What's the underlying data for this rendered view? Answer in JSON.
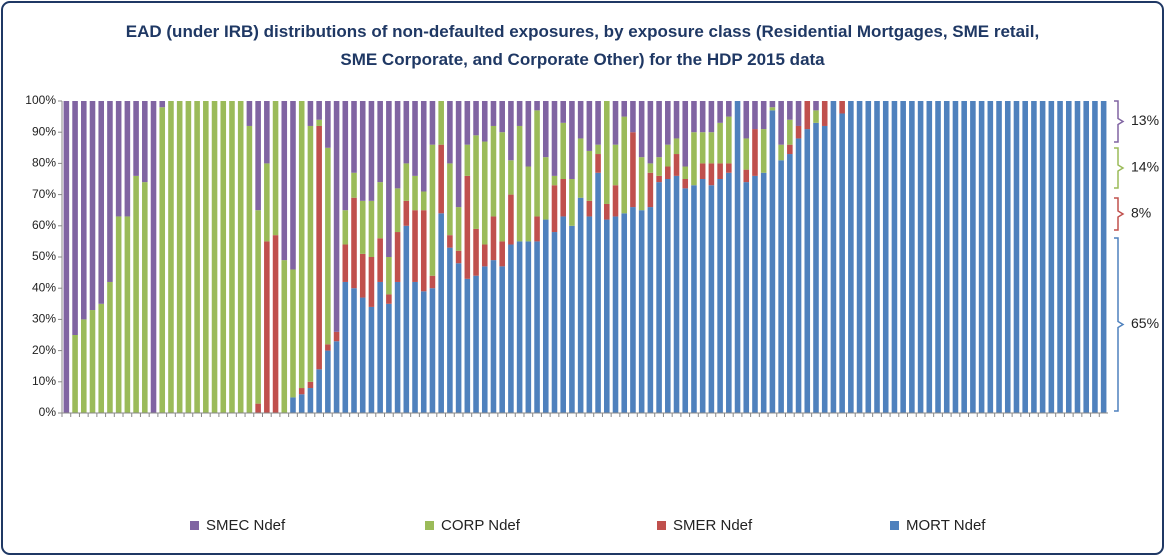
{
  "chart_data": {
    "type": "stacked_bar",
    "title": "EAD (under IRB) distributions of non-defaulted exposures, by exposure class (Residential Mortgages, SME retail, SME Corporate, and Corporate Other) for the HDP 2015 data",
    "categories": [
      null,
      null,
      null,
      null,
      null,
      null,
      null,
      null,
      null,
      null,
      null,
      null,
      null,
      null,
      null,
      null,
      null,
      null,
      null,
      null,
      null,
      null,
      null,
      null,
      null,
      null,
      null,
      null,
      null,
      null,
      null,
      null,
      null,
      null,
      null,
      null,
      null,
      null,
      null,
      null,
      null,
      null,
      null,
      null,
      null,
      null,
      null,
      null,
      null,
      null,
      null,
      null,
      null,
      null,
      null,
      null,
      null,
      null,
      null,
      null,
      null,
      null,
      null,
      null,
      null,
      null,
      null,
      null,
      null,
      null,
      null,
      null,
      null,
      null,
      null,
      null,
      null,
      null,
      null,
      null,
      null,
      null,
      null,
      null,
      null,
      null,
      null,
      null,
      null,
      null,
      null,
      null,
      null,
      null,
      null,
      null,
      null,
      null,
      null,
      null,
      null,
      null,
      null,
      null,
      null,
      null,
      null,
      null,
      null,
      null,
      null,
      null,
      null,
      null,
      null,
      null,
      null,
      null,
      null,
      null
    ],
    "series": [
      {
        "name": "SMEC Ndef",
        "color": "#8064a2",
        "values": [
          100,
          75,
          70,
          67,
          65,
          58,
          37,
          37,
          24,
          26,
          100,
          2,
          0,
          0,
          0,
          0,
          0,
          0,
          0,
          0,
          0,
          8,
          35,
          20,
          0,
          51,
          54,
          0,
          8,
          6,
          15,
          74,
          35,
          23,
          32,
          32,
          26,
          50,
          28,
          20,
          24,
          29,
          14,
          0,
          20,
          34,
          14,
          11,
          13,
          8,
          10,
          19,
          8,
          21,
          3,
          18,
          24,
          7,
          25,
          12,
          16,
          14,
          0,
          14,
          5,
          10,
          18,
          20,
          18,
          14,
          12,
          21,
          10,
          10,
          10,
          7,
          5,
          0,
          12,
          9,
          9,
          2,
          14,
          6,
          8,
          0,
          3,
          0,
          0,
          0,
          0,
          0,
          0,
          0,
          0,
          0,
          0,
          0,
          0,
          0,
          0,
          0,
          0,
          0,
          0,
          0,
          0,
          0,
          0,
          0,
          0,
          0,
          0,
          0,
          0,
          0,
          0,
          0,
          0,
          0
        ]
      },
      {
        "name": "CORP Ndef",
        "color": "#9bbb59",
        "values": [
          0,
          25,
          30,
          33,
          35,
          42,
          63,
          63,
          76,
          74,
          0,
          98,
          100,
          100,
          100,
          100,
          100,
          100,
          100,
          100,
          100,
          92,
          62,
          25,
          43,
          49,
          41,
          92,
          82,
          2,
          63,
          0,
          11,
          8,
          17,
          18,
          18,
          12,
          14,
          12,
          11,
          6,
          42,
          14,
          23,
          14,
          10,
          30,
          33,
          29,
          35,
          11,
          37,
          24,
          34,
          20,
          3,
          18,
          15,
          19,
          16,
          3,
          33,
          13,
          31,
          0,
          17,
          3,
          6,
          7,
          5,
          4,
          17,
          10,
          10,
          13,
          15,
          0,
          10,
          0,
          14,
          1,
          5,
          8,
          0,
          0,
          4,
          0,
          0,
          0,
          0,
          0,
          0,
          0,
          0,
          0,
          0,
          0,
          0,
          0,
          0,
          0,
          0,
          0,
          0,
          0,
          0,
          0,
          0,
          0,
          0,
          0,
          0,
          0,
          0,
          0,
          0,
          0,
          0,
          0
        ]
      },
      {
        "name": "SMER Ndef",
        "color": "#c0504d",
        "values": [
          0,
          0,
          0,
          0,
          0,
          0,
          0,
          0,
          0,
          0,
          0,
          0,
          0,
          0,
          0,
          0,
          0,
          0,
          0,
          0,
          0,
          0,
          3,
          55,
          57,
          0,
          0,
          2,
          2,
          78,
          2,
          3,
          12,
          29,
          14,
          16,
          14,
          3,
          16,
          8,
          23,
          26,
          4,
          22,
          4,
          4,
          33,
          15,
          7,
          14,
          8,
          16,
          0,
          0,
          8,
          0,
          15,
          12,
          0,
          0,
          5,
          6,
          5,
          10,
          0,
          24,
          0,
          11,
          2,
          4,
          7,
          3,
          0,
          5,
          7,
          5,
          3,
          0,
          4,
          15,
          0,
          0,
          0,
          3,
          4,
          9,
          0,
          8,
          0,
          4,
          0,
          0,
          0,
          0,
          0,
          0,
          0,
          0,
          0,
          0,
          0,
          0,
          0,
          0,
          0,
          0,
          0,
          0,
          0,
          0,
          0,
          0,
          0,
          0,
          0,
          0,
          0,
          0,
          0,
          0
        ]
      },
      {
        "name": "MORT Ndef",
        "color": "#4f81bd",
        "values": [
          0,
          0,
          0,
          0,
          0,
          0,
          0,
          0,
          0,
          0,
          0,
          0,
          0,
          0,
          0,
          0,
          0,
          0,
          0,
          0,
          0,
          0,
          0,
          0,
          0,
          0,
          5,
          6,
          8,
          14,
          20,
          23,
          42,
          40,
          37,
          34,
          42,
          35,
          42,
          60,
          42,
          39,
          40,
          64,
          53,
          48,
          43,
          44,
          47,
          49,
          47,
          54,
          55,
          55,
          55,
          62,
          58,
          63,
          60,
          69,
          63,
          77,
          62,
          63,
          64,
          66,
          65,
          66,
          74,
          75,
          76,
          72,
          73,
          75,
          73,
          75,
          77,
          100,
          74,
          76,
          77,
          97,
          81,
          83,
          88,
          91,
          93,
          92,
          100,
          96,
          100,
          100,
          100,
          100,
          100,
          100,
          100,
          100,
          100,
          100,
          100,
          100,
          100,
          100,
          100,
          100,
          100,
          100,
          100,
          100,
          100,
          100,
          100,
          100,
          100,
          100,
          100,
          100,
          100,
          100
        ]
      }
    ],
    "ylim": [
      0,
      100
    ],
    "yticks": [
      {
        "value": 0,
        "label": "0%"
      },
      {
        "value": 10,
        "label": "10%"
      },
      {
        "value": 20,
        "label": "20%"
      },
      {
        "value": 30,
        "label": "30%"
      },
      {
        "value": 40,
        "label": "40%"
      },
      {
        "value": 50,
        "label": "50%"
      },
      {
        "value": 60,
        "label": "60%"
      },
      {
        "value": 70,
        "label": "70%"
      },
      {
        "value": 80,
        "label": "80%"
      },
      {
        "value": 90,
        "label": "90%"
      },
      {
        "value": 100,
        "label": "100%"
      }
    ],
    "grid": false,
    "legend": "bottom",
    "annotations": [
      {
        "text": "13%",
        "color": "#8064a2"
      },
      {
        "text": "14%",
        "color": "#9bbb59"
      },
      {
        "text": "8%",
        "color": "#c0504d"
      },
      {
        "text": "65%",
        "color": "#4f81bd"
      }
    ]
  }
}
